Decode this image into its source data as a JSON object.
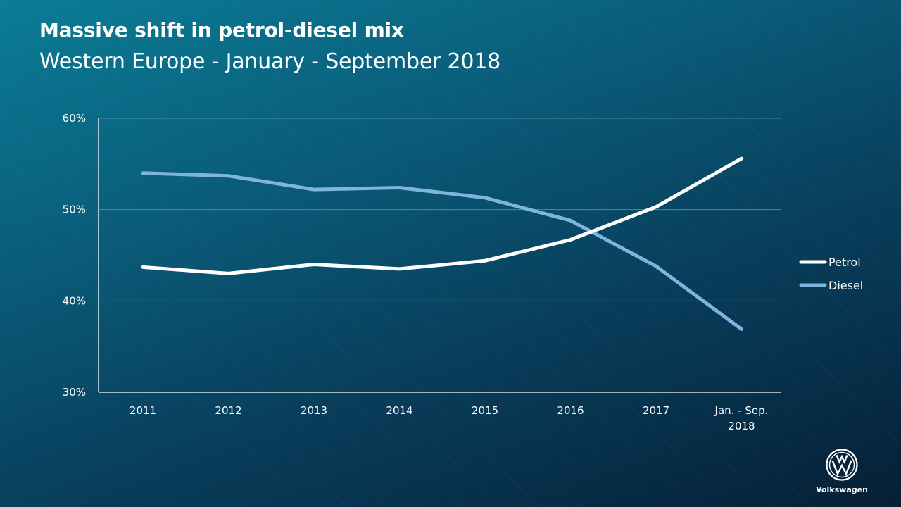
{
  "header": {
    "title": "Massive shift in petrol-diesel mix",
    "subtitle": "Western Europe - January - September 2018"
  },
  "brand": {
    "name": "Volkswagen",
    "icon": "vw-logo-icon"
  },
  "colors": {
    "petrol": "#ffffff",
    "diesel": "#7eb4de",
    "grid": "#5f97ab",
    "axis": "#ffffff"
  },
  "chart_data": {
    "type": "line",
    "title": "Massive shift in petrol-diesel mix",
    "subtitle": "Western Europe - January - September 2018",
    "categories": [
      "2011",
      "2012",
      "2013",
      "2014",
      "2015",
      "2016",
      "2017",
      "Jan. - Sep. 2018"
    ],
    "category_lines": [
      [
        "2011"
      ],
      [
        "2012"
      ],
      [
        "2013"
      ],
      [
        "2014"
      ],
      [
        "2015"
      ],
      [
        "2016"
      ],
      [
        "2017"
      ],
      [
        "Jan. - Sep.",
        "2018"
      ]
    ],
    "series": [
      {
        "name": "Petrol",
        "values": [
          43.7,
          43.0,
          44.0,
          43.5,
          44.4,
          46.7,
          50.3,
          55.6
        ]
      },
      {
        "name": "Diesel",
        "values": [
          54.0,
          53.7,
          52.2,
          52.4,
          51.3,
          48.8,
          43.8,
          36.9
        ]
      }
    ],
    "ylim": [
      30,
      60
    ],
    "yticks": [
      30,
      40,
      50,
      60
    ],
    "ytick_labels": [
      "30%",
      "40%",
      "50%",
      "60%"
    ],
    "xlabel": "",
    "ylabel": "",
    "grid": true,
    "legend_position": "right"
  }
}
